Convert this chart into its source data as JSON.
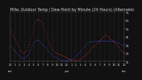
{
  "title": "Milw. Outdoor Temp / Dew Point by Minute (24 Hours) (Alternate)",
  "title_fontsize": 3.5,
  "bg_color": "#111111",
  "plot_bg_color": "#111111",
  "grid_color": "#444444",
  "ylim": [
    11,
    71
  ],
  "yticks": [
    11,
    21,
    31,
    41,
    51,
    61,
    71
  ],
  "ytick_labels": [
    "11",
    "21",
    "31",
    "41",
    "51",
    "61",
    "71"
  ],
  "ylabel_fontsize": 3.0,
  "xlabel_fontsize": 2.8,
  "line_color_temp": "#ee3333",
  "line_color_dew": "#3355ee",
  "temp_data": [
    50,
    48,
    46,
    44,
    42,
    40,
    38,
    36,
    34,
    32,
    30,
    28,
    26,
    25,
    24,
    23,
    22,
    22,
    22,
    23,
    24,
    26,
    28,
    30,
    32,
    35,
    38,
    42,
    46,
    50,
    54,
    57,
    59,
    61,
    62,
    63,
    63,
    62,
    61,
    60,
    59,
    57,
    55,
    52,
    50,
    47,
    44,
    41,
    38,
    35,
    33,
    31,
    29,
    27,
    26,
    25,
    24,
    23,
    22,
    22,
    21,
    21,
    20,
    20,
    20,
    19,
    19,
    18,
    18,
    17,
    17,
    16,
    16,
    15,
    15,
    14,
    14,
    13,
    13,
    13,
    12,
    12,
    12,
    12,
    12,
    12,
    12,
    13,
    13,
    14,
    14,
    15,
    15,
    16,
    17,
    18,
    19,
    20,
    21,
    22,
    23,
    24,
    25,
    26,
    27,
    28,
    29,
    30,
    31,
    32,
    33,
    34,
    35,
    36,
    37,
    38,
    39,
    40,
    41,
    42,
    43,
    44,
    44,
    43,
    42,
    41,
    40,
    39,
    38,
    37,
    36,
    35,
    34,
    33,
    32,
    31,
    30,
    29,
    28,
    27,
    26,
    25,
    24,
    23,
    22,
    21
  ],
  "dew_data": [
    30,
    29,
    28,
    27,
    26,
    25,
    24,
    23,
    22,
    21,
    20,
    19,
    18,
    17,
    16,
    15,
    15,
    15,
    15,
    16,
    17,
    18,
    19,
    20,
    22,
    24,
    26,
    28,
    30,
    32,
    34,
    35,
    36,
    37,
    37,
    37,
    37,
    36,
    35,
    34,
    33,
    32,
    31,
    30,
    29,
    28,
    27,
    26,
    25,
    24,
    23,
    22,
    21,
    20,
    19,
    18,
    17,
    17,
    16,
    16,
    15,
    15,
    14,
    14,
    13,
    13,
    13,
    12,
    12,
    12,
    12,
    12,
    12,
    12,
    12,
    13,
    13,
    13,
    14,
    14,
    15,
    15,
    16,
    17,
    18,
    19,
    20,
    21,
    22,
    23,
    24,
    25,
    26,
    27,
    28,
    29,
    30,
    31,
    32,
    33,
    34,
    35,
    35,
    35,
    35,
    35,
    35,
    36,
    36,
    36,
    36,
    36,
    36,
    36,
    36,
    36,
    36,
    36,
    36,
    36,
    36,
    36,
    36,
    36,
    36,
    36,
    36,
    36,
    36,
    36,
    36,
    36,
    36,
    35,
    35,
    35,
    34,
    34,
    33,
    33,
    32,
    32,
    31,
    31,
    30,
    30
  ],
  "xtick_positions": [
    0,
    6,
    12,
    18,
    24,
    30,
    36,
    42,
    48,
    54,
    60,
    66,
    72,
    78,
    84,
    90,
    96,
    102,
    108,
    114,
    120,
    126,
    132,
    138,
    145
  ],
  "xtick_labels": [
    "12",
    "1",
    "2",
    "3",
    "4",
    "5",
    "6",
    "7",
    "8",
    "9",
    "10",
    "11",
    "12",
    "1",
    "2",
    "3",
    "4",
    "5",
    "6",
    "7",
    "8",
    "9",
    "10",
    "11",
    "12"
  ],
  "xtick_labels2": [
    "am",
    "",
    "",
    "",
    "",
    "",
    "",
    "",
    "",
    "",
    "",
    "",
    "pm",
    "",
    "",
    "",
    "",
    "",
    "",
    "",
    "",
    "",
    "",
    "",
    "am"
  ]
}
